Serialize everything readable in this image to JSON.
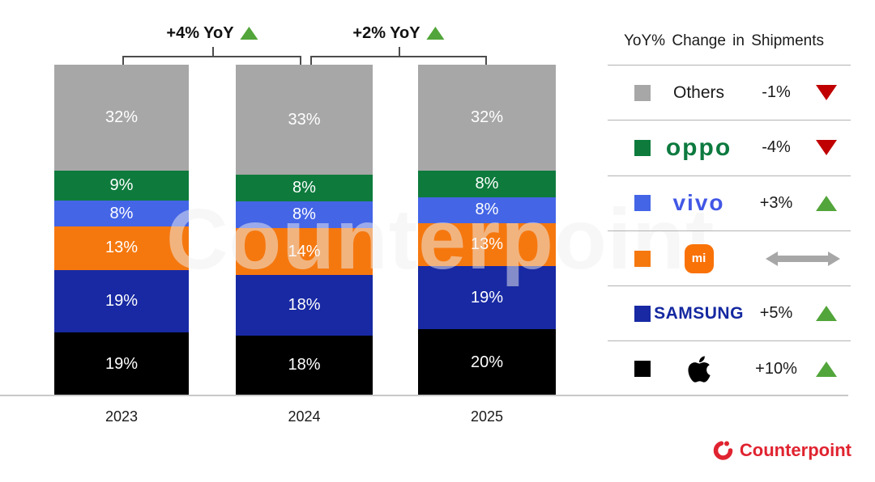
{
  "chart_data": {
    "type": "bar",
    "stacked": true,
    "categories": [
      "2023",
      "2024",
      "2025"
    ],
    "unit": "%",
    "series": [
      {
        "name": "Others",
        "color": "#a7a7a7",
        "values": [
          32,
          33,
          32
        ],
        "labels": [
          "32%",
          "33%",
          "32%"
        ]
      },
      {
        "name": "OPPO",
        "color": "#0e7b3d",
        "values": [
          9,
          8,
          8
        ],
        "labels": [
          "9%",
          "8%",
          "8%"
        ]
      },
      {
        "name": "vivo",
        "color": "#4465e6",
        "values": [
          8,
          8,
          8
        ],
        "labels": [
          "8%",
          "8%",
          "8%"
        ]
      },
      {
        "name": "Xiaomi",
        "color": "#f5780f",
        "values": [
          13,
          14,
          13
        ],
        "labels": [
          "13%",
          "14%",
          "13%"
        ]
      },
      {
        "name": "Samsung",
        "color": "#1829a3",
        "values": [
          19,
          18,
          19
        ],
        "labels": [
          "19%",
          "18%",
          "19%"
        ]
      },
      {
        "name": "Apple",
        "color": "#000000",
        "values": [
          19,
          18,
          20
        ],
        "labels": [
          "19%",
          "18%",
          "20%"
        ]
      }
    ],
    "annotations": [
      {
        "label": "+4% YoY",
        "direction": "up",
        "span": [
          "2023",
          "2024"
        ]
      },
      {
        "label": "+2% YoY",
        "direction": "up",
        "span": [
          "2024",
          "2025"
        ]
      }
    ],
    "legend_position": "right",
    "grid": false,
    "ylim": [
      0,
      100
    ]
  },
  "legend": {
    "title": "YoY% Change in Shipments",
    "rows": [
      {
        "brand": "Others",
        "logo": "others-label",
        "swatch": "#a7a7a7",
        "change": "-1%",
        "direction": "down"
      },
      {
        "brand": "OPPO",
        "logo": "oppo-logo",
        "swatch": "#0e7b3d",
        "change": "-4%",
        "direction": "down"
      },
      {
        "brand": "vivo",
        "logo": "vivo-logo",
        "swatch": "#4465e6",
        "change": "+3%",
        "direction": "up"
      },
      {
        "brand": "Xiaomi",
        "logo": "xiaomi-logo",
        "swatch": "#f5780f",
        "change": "",
        "direction": "flat"
      },
      {
        "brand": "Samsung",
        "logo": "samsung-logo",
        "swatch": "#1829a3",
        "change": "+5%",
        "direction": "up"
      },
      {
        "brand": "Apple",
        "logo": "apple-logo",
        "swatch": "#000000",
        "change": "+10%",
        "direction": "up"
      }
    ]
  },
  "logo_text": {
    "oppo": "oppo",
    "vivo": "vivo",
    "xiaomi_badge": "mi",
    "samsung": "SAMSUNG"
  },
  "watermark": "Counterpoint",
  "footer": {
    "brand": "Counterpoint"
  },
  "colors": {
    "up": "#52a53a",
    "down": "#c00000",
    "flat_arrow": "#a7a7a7",
    "separator": "#b3b3b3",
    "baseline": "#c9c9c9",
    "bracket": "#4d4d4d",
    "counterpoint_red": "#e02330",
    "oppo_green": "#0d7a3f",
    "vivo_blue": "#4257e5",
    "samsung_blue": "#1428a0",
    "xiaomi_orange": "#f97208"
  }
}
